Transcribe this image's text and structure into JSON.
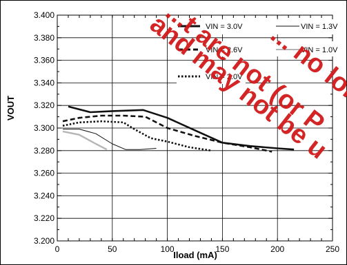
{
  "chart_data": {
    "type": "line",
    "xlabel": "Iload (mA)",
    "ylabel": "VOUT",
    "xlim": [
      0,
      250
    ],
    "ylim": [
      3.2,
      3.4
    ],
    "xticks": [
      0,
      50,
      100,
      150,
      200,
      250
    ],
    "yticks": [
      3.2,
      3.22,
      3.24,
      3.26,
      3.28,
      3.3,
      3.32,
      3.34,
      3.36,
      3.38,
      3.4
    ],
    "grid": true,
    "legend_position": "top-right",
    "series": [
      {
        "name": "VIN = 3.0V",
        "style": "thick-solid",
        "color": "#111111",
        "x": [
          10,
          30,
          50,
          78,
          100,
          125,
          150,
          175,
          200,
          215
        ],
        "y": [
          3.319,
          3.314,
          3.315,
          3.316,
          3.309,
          3.298,
          3.287,
          3.284,
          3.282,
          3.281
        ]
      },
      {
        "name": "VIN = 2.6V",
        "style": "dashed",
        "color": "#111111",
        "x": [
          5,
          20,
          40,
          60,
          80,
          100,
          125,
          150,
          175,
          195
        ],
        "y": [
          3.306,
          3.309,
          3.311,
          3.311,
          3.31,
          3.3,
          3.293,
          3.287,
          3.283,
          3.279
        ]
      },
      {
        "name": "VIN = 2.0V",
        "style": "dotted",
        "color": "#111111",
        "x": [
          5,
          20,
          40,
          60,
          70,
          85,
          100,
          120,
          140
        ],
        "y": [
          3.302,
          3.305,
          3.306,
          3.305,
          3.299,
          3.291,
          3.288,
          3.283,
          3.28
        ]
      },
      {
        "name": "VIN = 1.3V",
        "style": "thin-solid",
        "color": "#111111",
        "x": [
          5,
          20,
          35,
          50,
          62,
          75,
          90
        ],
        "y": [
          3.299,
          3.299,
          3.295,
          3.286,
          3.281,
          3.281,
          3.282
        ]
      },
      {
        "name": "VIN = 1.0V",
        "style": "gray-solid",
        "color": "#b5b5b5",
        "x": [
          5,
          20,
          35,
          45
        ],
        "y": [
          3.297,
          3.294,
          3.286,
          3.281
        ]
      }
    ]
  },
  "watermark": {
    "lines": [
      "...t are not (or P",
      "and may not be u",
      "... no lon..."
    ],
    "color": "#d11a1a"
  }
}
